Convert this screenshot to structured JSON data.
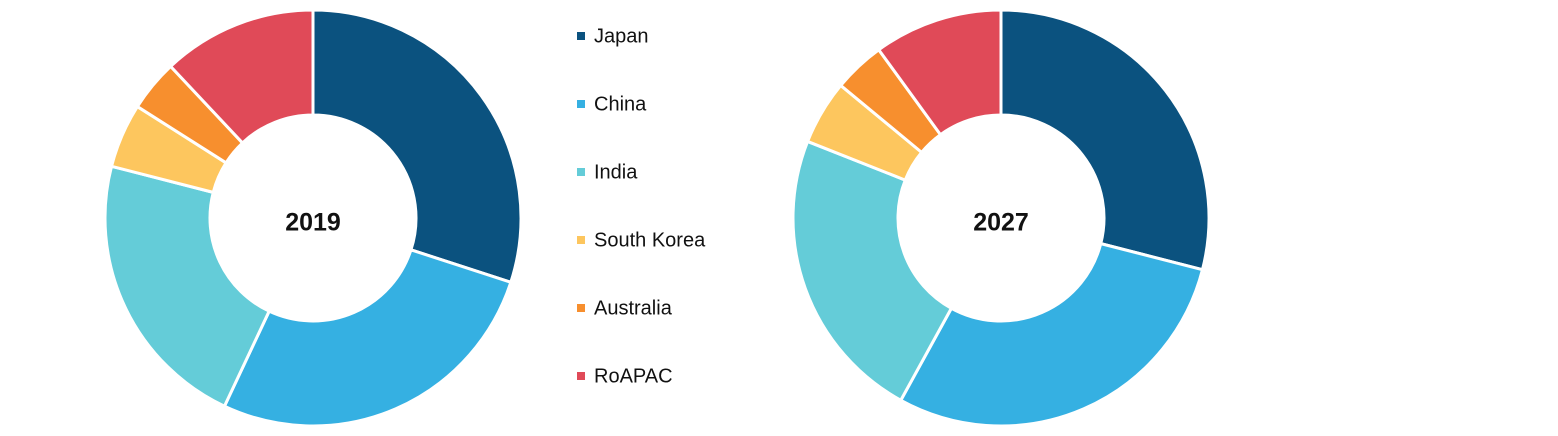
{
  "legend": {
    "categories": [
      "Japan",
      "China",
      "India",
      "South Korea",
      "Australia",
      "RoAPAC"
    ],
    "colors": [
      "#0b527f",
      "#35b0e2",
      "#64ccd8",
      "#fdc65e",
      "#f78f2e",
      "#e04a58"
    ]
  },
  "chart_data": [
    {
      "type": "donut",
      "title": "2019",
      "values": [
        30,
        27,
        22,
        5,
        4,
        12
      ]
    },
    {
      "type": "donut",
      "title": "2027",
      "values": [
        29,
        29,
        23,
        5,
        4,
        10
      ]
    }
  ]
}
